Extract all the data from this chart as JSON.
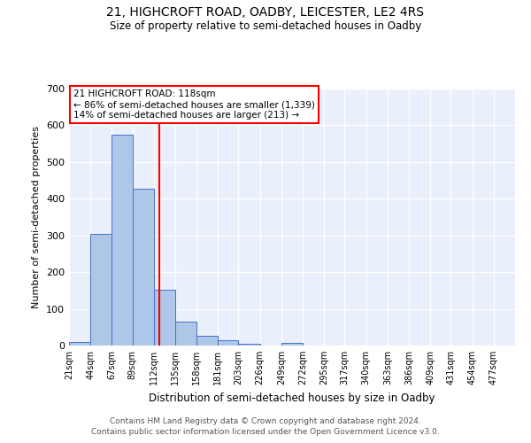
{
  "title": "21, HIGHCROFT ROAD, OADBY, LEICESTER, LE2 4RS",
  "subtitle": "Size of property relative to semi-detached houses in Oadby",
  "xlabel": "Distribution of semi-detached houses by size in Oadby",
  "ylabel": "Number of semi-detached properties",
  "footer_line1": "Contains HM Land Registry data © Crown copyright and database right 2024.",
  "footer_line2": "Contains public sector information licensed under the Open Government Licence v3.0.",
  "annotation_line1": "21 HIGHCROFT ROAD: 118sqm",
  "annotation_line2": "← 86% of semi-detached houses are smaller (1,339)",
  "annotation_line3": "14% of semi-detached houses are larger (213) →",
  "bar_values": [
    10,
    303,
    575,
    428,
    152,
    65,
    27,
    14,
    5,
    0,
    8,
    0,
    0,
    0,
    0,
    0,
    0,
    0,
    0,
    0,
    0
  ],
  "bin_labels": [
    "21sqm",
    "44sqm",
    "67sqm",
    "89sqm",
    "112sqm",
    "135sqm",
    "158sqm",
    "181sqm",
    "203sqm",
    "226sqm",
    "249sqm",
    "272sqm",
    "295sqm",
    "317sqm",
    "340sqm",
    "363sqm",
    "386sqm",
    "409sqm",
    "431sqm",
    "454sqm",
    "477sqm"
  ],
  "bin_edges": [
    21,
    44,
    67,
    89,
    112,
    135,
    158,
    181,
    203,
    226,
    249,
    272,
    295,
    317,
    340,
    363,
    386,
    409,
    431,
    454,
    477,
    500
  ],
  "property_size": 118,
  "bar_color": "#aec6e8",
  "bar_edge_color": "#4472c4",
  "vline_color": "red",
  "annotation_box_color": "red",
  "background_color": "#eaf0fb",
  "ylim": [
    0,
    700
  ],
  "yticks": [
    0,
    100,
    200,
    300,
    400,
    500,
    600,
    700
  ]
}
